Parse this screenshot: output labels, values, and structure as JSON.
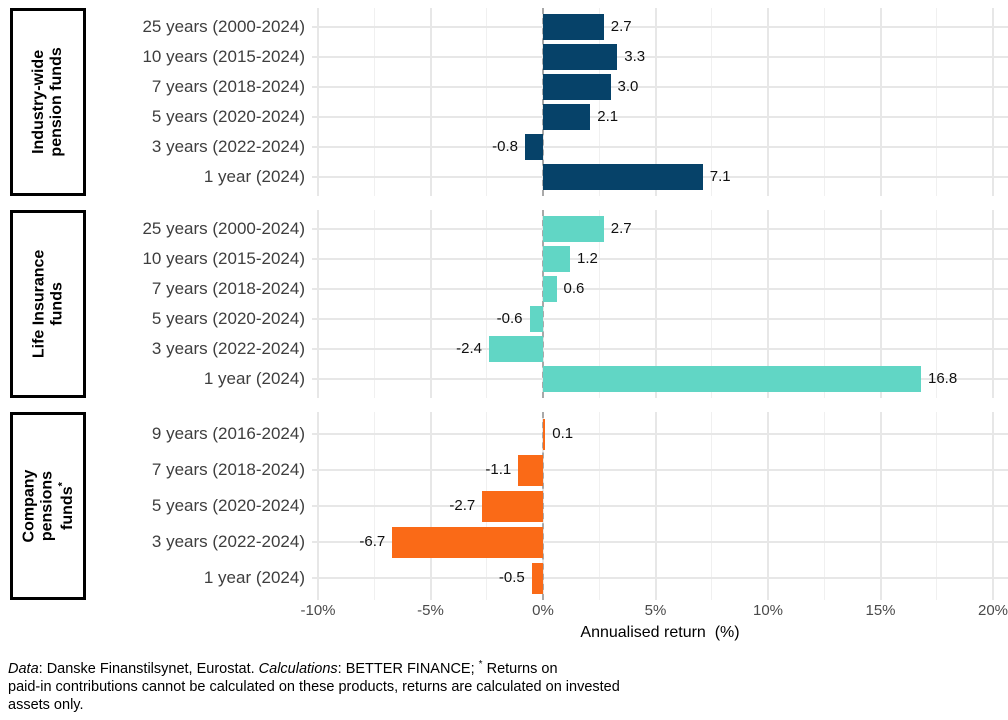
{
  "chart_data": {
    "type": "bar",
    "orientation": "horizontal",
    "xlabel": "Annualised return  (%)",
    "x_axis": {
      "min": -10,
      "max": 20,
      "major_step": 5,
      "minor_step": 2.5,
      "ticks": [
        {
          "value": -10,
          "label": "-10%"
        },
        {
          "value": -5,
          "label": "-5%"
        },
        {
          "value": 0,
          "label": "0%"
        },
        {
          "value": 5,
          "label": "5%"
        },
        {
          "value": 10,
          "label": "10%"
        },
        {
          "value": 15,
          "label": "15%"
        },
        {
          "value": 20,
          "label": "20%"
        }
      ],
      "grid": true
    },
    "groups": [
      {
        "name": "Industry-wide pension funds",
        "label_lines": [
          "Industry-wide",
          "pension funds"
        ],
        "color": "#064269",
        "bars": [
          {
            "category": "25 years (2000-2024)",
            "value": 2.7,
            "label": "2.7"
          },
          {
            "category": "10 years (2015-2024)",
            "value": 3.3,
            "label": "3.3"
          },
          {
            "category": "7 years (2018-2024)",
            "value": 3.0,
            "label": "3.0"
          },
          {
            "category": "5 years (2020-2024)",
            "value": 2.1,
            "label": "2.1"
          },
          {
            "category": "3 years (2022-2024)",
            "value": -0.8,
            "label": "-0.8"
          },
          {
            "category": "1 year (2024)",
            "value": 7.1,
            "label": "7.1"
          }
        ]
      },
      {
        "name": "Life Insurance funds",
        "label_lines": [
          "Life Insurance",
          "funds"
        ],
        "color": "#61d6c5",
        "bars": [
          {
            "category": "25 years (2000-2024)",
            "value": 2.7,
            "label": "2.7"
          },
          {
            "category": "10 years (2015-2024)",
            "value": 1.2,
            "label": "1.2"
          },
          {
            "category": "7 years (2018-2024)",
            "value": 0.6,
            "label": "0.6"
          },
          {
            "category": "5 years (2020-2024)",
            "value": -0.6,
            "label": "-0.6"
          },
          {
            "category": "3 years (2022-2024)",
            "value": -2.4,
            "label": "-2.4"
          },
          {
            "category": "1 year (2024)",
            "value": 16.8,
            "label": "16.8"
          }
        ]
      },
      {
        "name": "Company pensions funds*",
        "label_lines": [
          "Company",
          "pensions",
          "funds*"
        ],
        "color": "#fa6a17",
        "bars": [
          {
            "category": "9 years (2016-2024)",
            "value": 0.1,
            "label": "0.1"
          },
          {
            "category": "7 years (2018-2024)",
            "value": -1.1,
            "label": "-1.1"
          },
          {
            "category": "5 years (2020-2024)",
            "value": -2.7,
            "label": "-2.7"
          },
          {
            "category": "3 years (2022-2024)",
            "value": -6.7,
            "label": "-6.7"
          },
          {
            "category": "1 year (2024)",
            "value": -0.5,
            "label": "-0.5"
          }
        ]
      }
    ]
  },
  "colors": {
    "grid_major": "#e7e7e7",
    "grid_minor": "#f0f0f0",
    "zero_line": "#a9a9a9",
    "group_navy": "#064269",
    "group_teal": "#61d6c5",
    "group_orange": "#fa6a17"
  },
  "footnote": {
    "data_word": "Data",
    "seg1": ": Danske Finanstilsynet, Eurostat. ",
    "calc_word": "Calculations",
    "seg2": ": BETTER FINANCE; ",
    "asterisk": "*",
    "seg3": " Returns on",
    "line2": "paid-in contributions cannot be calculated on these products, returns are calculated on invested",
    "line3": "assets only."
  }
}
